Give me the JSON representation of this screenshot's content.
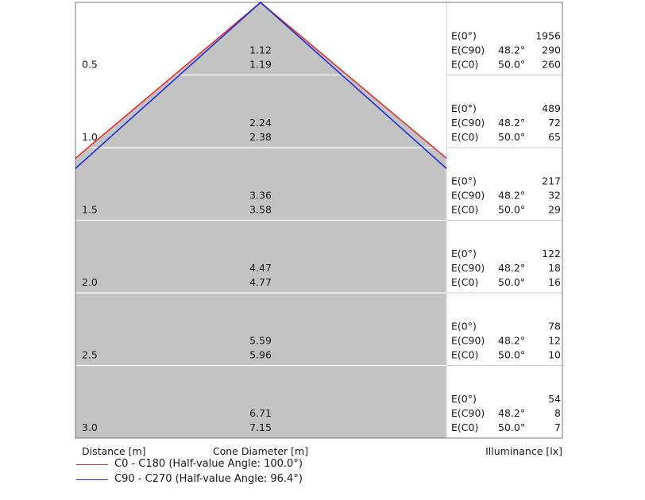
{
  "chart_data": {
    "type": "cone-diagram",
    "distances": [
      "0.5",
      "1.0",
      "1.5",
      "2.0",
      "2.5",
      "3.0"
    ],
    "cone_diameters": [
      [
        "1.12",
        "1.19"
      ],
      [
        "2.24",
        "2.38"
      ],
      [
        "3.36",
        "3.58"
      ],
      [
        "4.47",
        "4.77"
      ],
      [
        "5.59",
        "5.96"
      ],
      [
        "6.71",
        "7.15"
      ]
    ],
    "illuminance": [
      {
        "E0": "1956",
        "EC90": "290",
        "EC0": "260"
      },
      {
        "E0": "489",
        "EC90": "72",
        "EC0": "65"
      },
      {
        "E0": "217",
        "EC90": "32",
        "EC0": "29"
      },
      {
        "E0": "122",
        "EC90": "18",
        "EC0": "16"
      },
      {
        "E0": "78",
        "EC90": "12",
        "EC0": "10"
      },
      {
        "E0": "54",
        "EC90": "8",
        "EC0": "7"
      }
    ],
    "row_labels": {
      "E0": "E(0°)",
      "EC90": "E(C90)",
      "EC0": "E(C0)"
    },
    "angle_c90": "48.2°",
    "angle_c0": "50.0°",
    "half_value_angles": {
      "c0_c180": 100.0,
      "c90_c270": 96.4
    },
    "footer": {
      "distance": "Distance [m]",
      "cone": "Cone Diameter [m]",
      "illuminance": "Illuminance [lx]"
    },
    "series": [
      {
        "name": "C0 - C180 (Half-value Angle: 100.0°)",
        "color": "#e8302a"
      },
      {
        "name": "C90 - C270 (Half-value Angle: 96.4°)",
        "color": "#1f2fd8"
      }
    ],
    "fill_color": "#c3c3c3"
  }
}
